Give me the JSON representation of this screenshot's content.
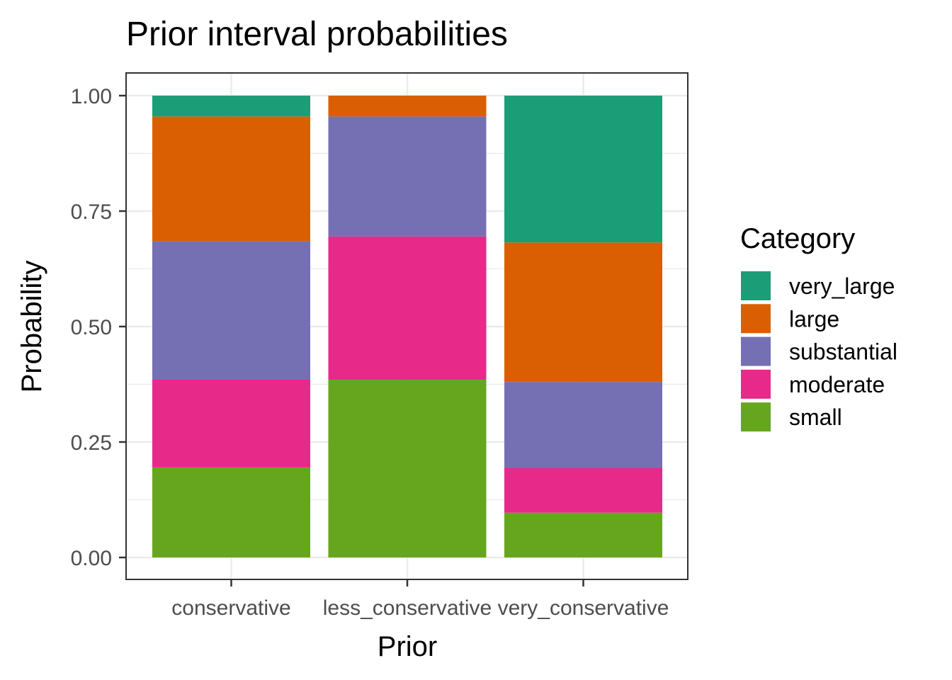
{
  "chart_data": {
    "type": "bar",
    "stacked": true,
    "title": "Prior interval probabilities",
    "xlabel": "Prior",
    "ylabel": "Probability",
    "ylim": [
      0,
      1
    ],
    "yticks": [
      "0.00",
      "0.25",
      "0.50",
      "0.75",
      "1.00"
    ],
    "ytick_values": [
      0,
      0.25,
      0.5,
      0.75,
      1.0
    ],
    "categories": [
      "conservative",
      "less_conservative",
      "very_conservative"
    ],
    "legend_title": "Category",
    "legend_position": "right",
    "grid": true,
    "series": [
      {
        "name": "small",
        "color": "#66A61E",
        "values": [
          0.195,
          0.385,
          0.097
        ]
      },
      {
        "name": "moderate",
        "color": "#E7298A",
        "values": [
          0.19,
          0.31,
          0.097
        ]
      },
      {
        "name": "substantial",
        "color": "#7570B3",
        "values": [
          0.3,
          0.26,
          0.186
        ]
      },
      {
        "name": "large",
        "color": "#D95F02",
        "values": [
          0.27,
          0.045,
          0.302
        ]
      },
      {
        "name": "very_large",
        "color": "#1B9E77",
        "values": [
          0.045,
          0.0,
          0.318
        ]
      }
    ],
    "legend_order": [
      "very_large",
      "large",
      "substantial",
      "moderate",
      "small"
    ]
  }
}
